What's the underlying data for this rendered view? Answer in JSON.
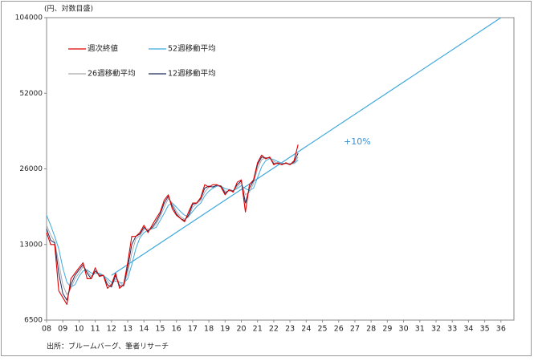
{
  "chart_data": {
    "type": "line",
    "y_label": "(円、対数目盛)",
    "source": "出所：ブルームバーグ、筆者リサーチ",
    "annotation": "+10%",
    "log_scale": true,
    "ylim": [
      6500,
      104000
    ],
    "yticks": [
      6500,
      13000,
      26000,
      52000,
      104000
    ],
    "xlim": [
      2008,
      2036.8
    ],
    "xticks": [
      {
        "value": 2008,
        "label": "08"
      },
      {
        "value": 2009,
        "label": "09"
      },
      {
        "value": 2010,
        "label": "10"
      },
      {
        "value": 2011,
        "label": "11"
      },
      {
        "value": 2012,
        "label": "12"
      },
      {
        "value": 2013,
        "label": "13"
      },
      {
        "value": 2014,
        "label": "14"
      },
      {
        "value": 2015,
        "label": "15"
      },
      {
        "value": 2016,
        "label": "16"
      },
      {
        "value": 2017,
        "label": "17"
      },
      {
        "value": 2018,
        "label": "18"
      },
      {
        "value": 2019,
        "label": "19"
      },
      {
        "value": 2020,
        "label": "20"
      },
      {
        "value": 2021,
        "label": "21"
      },
      {
        "value": 2022,
        "label": "22"
      },
      {
        "value": 2023,
        "label": "23"
      },
      {
        "value": 2024,
        "label": "24"
      },
      {
        "value": 2025,
        "label": "25"
      },
      {
        "value": 2026,
        "label": "26"
      },
      {
        "value": 2027,
        "label": "27"
      },
      {
        "value": 2028,
        "label": "28"
      },
      {
        "value": 2029,
        "label": "29"
      },
      {
        "value": 2030,
        "label": "30"
      },
      {
        "value": 2031,
        "label": "31"
      },
      {
        "value": 2032,
        "label": "32"
      },
      {
        "value": 2033,
        "label": "33"
      },
      {
        "value": 2034,
        "label": "34"
      },
      {
        "value": 2035,
        "label": "35"
      },
      {
        "value": 2036,
        "label": "36"
      }
    ],
    "x": [
      2008,
      2008.25,
      2008.5,
      2008.75,
      2009,
      2009.25,
      2009.5,
      2009.75,
      2010,
      2010.25,
      2010.5,
      2010.75,
      2011,
      2011.25,
      2011.5,
      2011.75,
      2012,
      2012.25,
      2012.5,
      2012.75,
      2013,
      2013.25,
      2013.5,
      2013.75,
      2014,
      2014.25,
      2014.5,
      2014.75,
      2015,
      2015.25,
      2015.5,
      2015.75,
      2016,
      2016.25,
      2016.5,
      2016.75,
      2017,
      2017.25,
      2017.5,
      2017.75,
      2018,
      2018.25,
      2018.5,
      2018.75,
      2019,
      2019.25,
      2019.5,
      2019.75,
      2020,
      2020.25,
      2020.5,
      2020.75,
      2021,
      2021.25,
      2021.5,
      2021.75,
      2022,
      2022.25,
      2022.5,
      2022.75,
      2023,
      2023.25,
      2023.5
    ],
    "series": [
      {
        "name": "週次終値",
        "color": "#e00000",
        "values": [
          14500,
          13000,
          13000,
          8500,
          8000,
          7500,
          9500,
          10000,
          10500,
          11000,
          9500,
          9500,
          10500,
          9700,
          9800,
          8700,
          9000,
          10000,
          8700,
          9000,
          11000,
          14000,
          14000,
          14500,
          15500,
          14500,
          15500,
          16500,
          17500,
          19500,
          20500,
          18000,
          17000,
          16500,
          16000,
          17500,
          19000,
          19000,
          20000,
          22500,
          22000,
          22500,
          22500,
          22000,
          20500,
          21500,
          21000,
          23000,
          23500,
          17500,
          22500,
          23500,
          27500,
          29500,
          28500,
          29000,
          27000,
          27500,
          27000,
          27500,
          27000,
          28000,
          32500
        ]
      },
      {
        "name": "52週移動平均",
        "color": "#3fa9dc",
        "values": [
          17000,
          15500,
          14000,
          12500,
          10500,
          9200,
          8800,
          9000,
          9700,
          10200,
          10300,
          10000,
          10000,
          10000,
          9800,
          9500,
          9200,
          9300,
          9200,
          9100,
          9500,
          10800,
          12500,
          13800,
          14500,
          14800,
          15000,
          15200,
          16200,
          17300,
          18600,
          19000,
          18300,
          17600,
          17000,
          16800,
          17600,
          18400,
          19000,
          20300,
          21200,
          21800,
          22200,
          22200,
          21700,
          21500,
          21300,
          21700,
          22300,
          21700,
          21300,
          21800,
          24000,
          26500,
          28000,
          28600,
          28300,
          27800,
          27400,
          27300,
          27300,
          27300,
          28200
        ]
      },
      {
        "name": "26週移動平均",
        "color": "#aaaaaa",
        "values": [
          15500,
          14200,
          13300,
          11000,
          9000,
          8200,
          8700,
          9500,
          10000,
          10600,
          10200,
          9700,
          10000,
          9900,
          9800,
          9300,
          8900,
          9500,
          9200,
          8900,
          10000,
          12000,
          13700,
          14100,
          14900,
          15000,
          15000,
          15700,
          16800,
          18300,
          19800,
          19000,
          17600,
          16800,
          16400,
          16700,
          18300,
          18900,
          19500,
          21000,
          22000,
          22100,
          22300,
          22300,
          21200,
          21200,
          21300,
          22000,
          23000,
          20500,
          21000,
          22800,
          26000,
          28300,
          28800,
          28800,
          27800,
          27400,
          27200,
          27300,
          27200,
          27400,
          29000
        ]
      },
      {
        "name": "12週移動平均",
        "color": "#1f2a5c",
        "values": [
          15000,
          13500,
          13200,
          10000,
          8300,
          7800,
          9000,
          9800,
          10300,
          10800,
          10000,
          9500,
          10200,
          9800,
          9800,
          9000,
          8800,
          9800,
          8900,
          8900,
          10500,
          13000,
          14000,
          14300,
          15200,
          14700,
          15200,
          16000,
          17200,
          19000,
          20200,
          18500,
          17200,
          16500,
          16200,
          17000,
          18800,
          19000,
          19800,
          21800,
          22200,
          22000,
          22400,
          22200,
          20800,
          21400,
          21200,
          22500,
          23300,
          19000,
          21800,
          23300,
          27000,
          29000,
          28700,
          28800,
          27300,
          27300,
          27100,
          27400,
          27000,
          27700,
          30000
        ]
      }
    ],
    "trend": {
      "color": "#3fa9dc",
      "x": [
        2012,
        2036
      ],
      "values": [
        9800,
        104000
      ]
    }
  }
}
